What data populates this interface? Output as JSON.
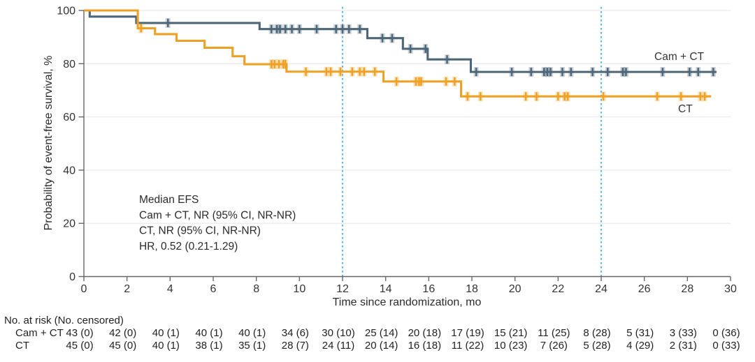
{
  "chart_data": {
    "type": "line",
    "subtype": "kaplan-meier-step",
    "title": "",
    "xlabel": "Time since randomization, mo",
    "ylabel": "Probability of event-free survival, %",
    "xlim": [
      0,
      30
    ],
    "ylim": [
      0,
      100
    ],
    "xticks": [
      0,
      2,
      4,
      6,
      8,
      10,
      12,
      14,
      16,
      18,
      20,
      22,
      24,
      26,
      28,
      30
    ],
    "yticks": [
      0,
      20,
      40,
      60,
      80,
      100
    ],
    "grid": "horizontal-light",
    "reference_lines_x": [
      12,
      24
    ],
    "reference_line_color": "#47b2e2",
    "annotation": [
      "Median EFS",
      "Cam + CT, NR (95% CI, NR-NR)",
      "CT, NR (95% CI, NR-NR)",
      "HR, 0.52 (0.21-1.29)"
    ],
    "series": [
      {
        "name": "Cam + CT",
        "color": "#4d6678",
        "start_value": 100,
        "end_time": 29.35,
        "drops": [
          [
            0.27,
            97.7
          ],
          [
            2.43,
            95.3
          ],
          [
            8.15,
            93.0
          ],
          [
            13.15,
            89.6
          ],
          [
            14.8,
            85.6
          ],
          [
            15.95,
            81.6
          ],
          [
            17.95,
            76.9
          ]
        ],
        "censor_marks": [
          [
            3.9,
            95.3
          ],
          [
            8.7,
            93.0
          ],
          [
            8.95,
            93.0
          ],
          [
            9.1,
            93.0
          ],
          [
            9.35,
            93.0
          ],
          [
            9.65,
            93.0
          ],
          [
            10.0,
            93.0
          ],
          [
            10.8,
            93.0
          ],
          [
            11.7,
            93.0
          ],
          [
            12.0,
            93.0
          ],
          [
            12.3,
            93.0
          ],
          [
            12.8,
            93.0
          ],
          [
            13.85,
            89.6
          ],
          [
            14.3,
            89.6
          ],
          [
            15.15,
            85.6
          ],
          [
            15.85,
            85.6
          ],
          [
            16.85,
            81.6
          ],
          [
            18.2,
            76.9
          ],
          [
            19.85,
            76.9
          ],
          [
            20.75,
            76.9
          ],
          [
            21.35,
            76.9
          ],
          [
            21.5,
            76.9
          ],
          [
            21.65,
            76.9
          ],
          [
            22.2,
            76.9
          ],
          [
            22.6,
            76.9
          ],
          [
            23.6,
            76.9
          ],
          [
            24.3,
            76.9
          ],
          [
            25.0,
            76.9
          ],
          [
            25.15,
            76.9
          ],
          [
            26.85,
            76.9
          ],
          [
            28.1,
            76.9
          ],
          [
            28.5,
            76.9
          ],
          [
            29.2,
            76.9
          ]
        ]
      },
      {
        "name": "CT",
        "color": "#eea125",
        "start_value": 100,
        "end_time": 29.1,
        "drops": [
          [
            2.5,
            93.3
          ],
          [
            3.3,
            91.1
          ],
          [
            4.3,
            88.6
          ],
          [
            5.6,
            86.0
          ],
          [
            6.9,
            82.8
          ],
          [
            7.45,
            79.8
          ],
          [
            9.4,
            77.0
          ],
          [
            13.9,
            73.3
          ],
          [
            17.5,
            67.7
          ]
        ],
        "censor_marks": [
          [
            2.65,
            93.3
          ],
          [
            8.7,
            79.8
          ],
          [
            8.85,
            79.8
          ],
          [
            9.05,
            79.8
          ],
          [
            9.25,
            79.8
          ],
          [
            9.35,
            79.8
          ],
          [
            10.3,
            77.0
          ],
          [
            11.25,
            77.0
          ],
          [
            11.45,
            77.0
          ],
          [
            11.9,
            77.0
          ],
          [
            12.45,
            77.0
          ],
          [
            12.8,
            77.0
          ],
          [
            13.0,
            77.0
          ],
          [
            13.5,
            77.0
          ],
          [
            14.5,
            73.3
          ],
          [
            15.4,
            73.3
          ],
          [
            15.55,
            73.3
          ],
          [
            15.65,
            73.3
          ],
          [
            16.8,
            73.3
          ],
          [
            17.2,
            73.3
          ],
          [
            17.8,
            67.7
          ],
          [
            18.4,
            67.7
          ],
          [
            20.5,
            67.7
          ],
          [
            21.0,
            67.7
          ],
          [
            22.0,
            67.7
          ],
          [
            22.3,
            67.7
          ],
          [
            22.45,
            67.7
          ],
          [
            24.1,
            67.7
          ],
          [
            26.6,
            67.7
          ],
          [
            27.7,
            67.7
          ],
          [
            28.6,
            67.7
          ],
          [
            28.8,
            67.7
          ]
        ]
      }
    ]
  },
  "risk_table": {
    "header": "No. at risk (No. censored)",
    "rows": [
      {
        "label": "Cam + CT",
        "values": [
          "43 (0)",
          "42 (0)",
          "40 (1)",
          "40 (1)",
          "40 (1)",
          "34 (6)",
          "30 (10)",
          "25 (14)",
          "20 (18)",
          "17 (19)",
          "15 (21)",
          "11 (25)",
          "8 (28)",
          "5 (31)",
          "3 (33)",
          "0 (36)"
        ]
      },
      {
        "label": "CT",
        "values": [
          "45 (0)",
          "45 (0)",
          "40 (1)",
          "38 (1)",
          "35 (1)",
          "28 (7)",
          "24 (11)",
          "20 (14)",
          "16 (18)",
          "11 (22)",
          "10 (23)",
          "7 (26)",
          "5 (28)",
          "4 (29)",
          "2 (31)",
          "0 (33)"
        ]
      }
    ]
  }
}
